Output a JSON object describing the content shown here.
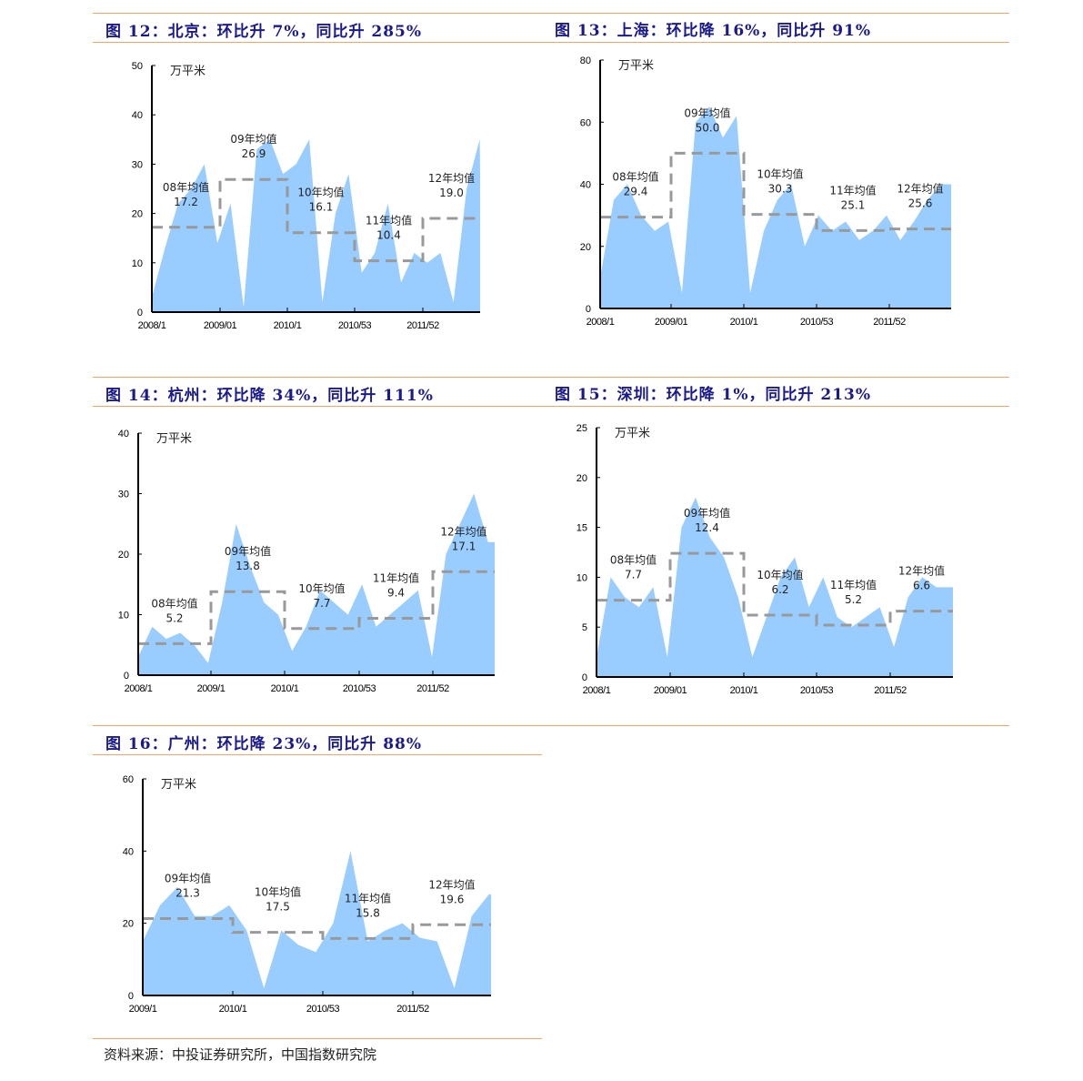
{
  "source_note": "资料来源：中投证券研究所，中国指数研究院",
  "chart_data": [
    {
      "type": "area",
      "title": "图 12：北京：环比升 7%，同比升 285%",
      "unit": "万平米",
      "ylim": [
        0,
        50
      ],
      "yticks": [
        0,
        10,
        20,
        30,
        40,
        50
      ],
      "xticks": [
        "2008/1",
        "2009/01",
        "2010/1",
        "2010/53",
        "2011/52"
      ],
      "x_step_weeks": 10,
      "values": [
        3,
        13,
        22,
        25,
        30,
        14,
        22,
        1,
        33,
        35,
        28,
        30,
        35,
        2,
        20,
        28,
        8,
        12,
        22,
        6,
        12,
        10,
        12,
        2,
        25,
        35,
        28
      ],
      "averages": [
        {
          "label": "08年均值",
          "value": 17.2
        },
        {
          "label": "09年均值",
          "value": 26.9
        },
        {
          "label": "10年均值",
          "value": 16.1
        },
        {
          "label": "11年均值",
          "value": 10.4
        },
        {
          "label": "12年均值",
          "value": 19.0
        }
      ]
    },
    {
      "type": "area",
      "title": "图 13：上海：环比降 16%，同比升 91%",
      "unit": "万平米",
      "ylim": [
        0,
        80
      ],
      "yticks": [
        0,
        20,
        40,
        60,
        80
      ],
      "xticks": [
        "2008/1",
        "2009/01",
        "2010/1",
        "2010/53",
        "2011/52"
      ],
      "x_step_weeks": 10,
      "values": [
        10,
        35,
        40,
        30,
        25,
        28,
        5,
        60,
        65,
        55,
        62,
        5,
        25,
        35,
        40,
        20,
        30,
        25,
        28,
        22,
        25,
        30,
        22,
        28,
        35,
        40
      ],
      "averages": [
        {
          "label": "08年均值",
          "value": 29.4
        },
        {
          "label": "09年均值",
          "value": 50.0
        },
        {
          "label": "10年均值",
          "value": 30.3
        },
        {
          "label": "11年均值",
          "value": 25.1
        },
        {
          "label": "12年均值",
          "value": 25.6
        }
      ]
    },
    {
      "type": "area",
      "title": "图 14：杭州：环比降 34%，同比升 111%",
      "unit": "万平米",
      "ylim": [
        0,
        40
      ],
      "yticks": [
        0,
        10,
        20,
        30,
        40
      ],
      "xticks": [
        "2008/1",
        "2009/1",
        "2010/1",
        "2010/53",
        "2011/52"
      ],
      "x_step_weeks": 10,
      "values": [
        3,
        8,
        6,
        7,
        5,
        2,
        12,
        25,
        18,
        12,
        10,
        4,
        8,
        14,
        12,
        10,
        15,
        8,
        10,
        12,
        14,
        3,
        20,
        25,
        30,
        22
      ],
      "averages": [
        {
          "label": "08年均值",
          "value": 5.2
        },
        {
          "label": "09年均值",
          "value": 13.8
        },
        {
          "label": "10年均值",
          "value": 7.7
        },
        {
          "label": "11年均值",
          "value": 9.4
        },
        {
          "label": "12年均值",
          "value": 17.1
        }
      ]
    },
    {
      "type": "area",
      "title": "图 15：深圳：环比降 1%，同比升 213%",
      "unit": "万平米",
      "ylim": [
        0,
        25
      ],
      "yticks": [
        0,
        5,
        10,
        15,
        20,
        25
      ],
      "xticks": [
        "2008/1",
        "2009/01",
        "2010/1",
        "2010/53",
        "2011/52"
      ],
      "x_step_weeks": 10,
      "values": [
        2,
        10,
        8,
        7,
        9,
        2,
        15,
        18,
        14,
        12,
        8,
        2,
        6,
        10,
        12,
        7,
        10,
        6,
        5,
        6,
        7,
        3,
        8,
        10,
        9,
        9
      ],
      "averages": [
        {
          "label": "08年均值",
          "value": 7.7
        },
        {
          "label": "09年均值",
          "value": 12.4
        },
        {
          "label": "10年均值",
          "value": 6.2
        },
        {
          "label": "11年均值",
          "value": 5.2
        },
        {
          "label": "12年均值",
          "value": 6.6
        }
      ]
    },
    {
      "type": "area",
      "title": "图 16：广州：环比降 23%，同比升 88%",
      "unit": "万平米",
      "ylim": [
        0,
        60
      ],
      "yticks": [
        0,
        20,
        40,
        60
      ],
      "xticks": [
        "2009/1",
        "2010/1",
        "2010/53",
        "2011/52"
      ],
      "x_step_weeks": 10,
      "values": [
        15,
        25,
        30,
        22,
        22,
        25,
        18,
        2,
        18,
        14,
        12,
        20,
        40,
        15,
        18,
        20,
        16,
        15,
        2,
        22,
        28
      ],
      "averages": [
        {
          "label": "09年均值",
          "value": 21.3
        },
        {
          "label": "10年均值",
          "value": 17.5
        },
        {
          "label": "11年均值",
          "value": 15.8
        },
        {
          "label": "12年均值",
          "value": 19.6
        }
      ]
    }
  ]
}
